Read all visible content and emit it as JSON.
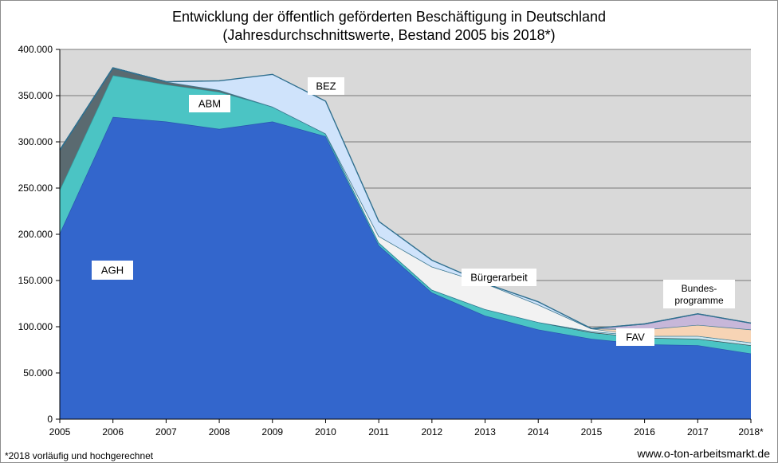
{
  "title_line1": "Entwicklung  der öffentlich geförderten Beschäftigung in Deutschland",
  "title_line2": "(Jahresdurchschnittswerte, Bestand 2005 bis 2018*)",
  "footnote": "*2018 vorläufig und hochgerechnet",
  "website": "www.o-ton-arbeitsmarkt.de",
  "chart_data": {
    "type": "area",
    "stacked": true,
    "grid": true,
    "x": [
      "2005",
      "2006",
      "2007",
      "2008",
      "2009",
      "2010",
      "2011",
      "2012",
      "2013",
      "2014",
      "2015",
      "2016",
      "2017",
      "2018*"
    ],
    "ylim": [
      0,
      400000
    ],
    "yticks": [
      "0",
      "50.000",
      "100.000",
      "150.000",
      "200.000",
      "250.000",
      "300.000",
      "350.000",
      "400.000"
    ],
    "ytick_values": [
      0,
      50000,
      100000,
      150000,
      200000,
      250000,
      300000,
      350000,
      400000
    ],
    "series": [
      {
        "name": "AGH",
        "color": "#3366cc",
        "values": [
          201000,
          327000,
          322000,
          314000,
          322000,
          306000,
          188000,
          137000,
          112000,
          97000,
          87000,
          81000,
          80000,
          71000
        ]
      },
      {
        "name": "ABM",
        "color": "#4bc4c4",
        "values": [
          47000,
          45000,
          40000,
          40000,
          16000,
          3000,
          3000,
          3000,
          7000,
          8000,
          7000,
          7000,
          7000,
          9000
        ]
      },
      {
        "name": "",
        "color": "#5a6a70",
        "values": [
          43000,
          8000,
          3000,
          2000,
          0,
          0,
          0,
          0,
          0,
          0,
          0,
          0,
          0,
          0
        ]
      },
      {
        "name": "FAV",
        "color": "#c8e6f0",
        "values": [
          0,
          0,
          0,
          0,
          0,
          0,
          0,
          0,
          0,
          0,
          1000,
          2000,
          3000,
          3000
        ]
      },
      {
        "name": "Bürgerarbeit",
        "color": "#f2f2f2",
        "values": [
          0,
          0,
          0,
          0,
          0,
          0,
          7000,
          25000,
          28000,
          19000,
          3000,
          0,
          0,
          0
        ]
      },
      {
        "name": "",
        "color": "#f7d4b5",
        "values": [
          0,
          0,
          0,
          0,
          0,
          0,
          0,
          0,
          0,
          0,
          0,
          7000,
          12000,
          14000
        ]
      },
      {
        "name": "Bundes-programme",
        "color": "#c7b7d9",
        "values": [
          0,
          0,
          0,
          0,
          0,
          0,
          0,
          0,
          0,
          0,
          0,
          6000,
          12000,
          7000
        ]
      },
      {
        "name": "BEZ",
        "color": "#cfe3fb",
        "values": [
          0,
          0,
          0,
          10000,
          35000,
          35000,
          16000,
          7000,
          0,
          3000,
          0,
          0,
          0,
          0
        ]
      }
    ],
    "labels": [
      {
        "text": "AGH"
      },
      {
        "text": "ABM"
      },
      {
        "text": "BEZ"
      },
      {
        "text": "Bürgerarbeit"
      },
      {
        "text": "FAV"
      },
      {
        "text": "Bundes-",
        "text2": "programme"
      }
    ]
  }
}
